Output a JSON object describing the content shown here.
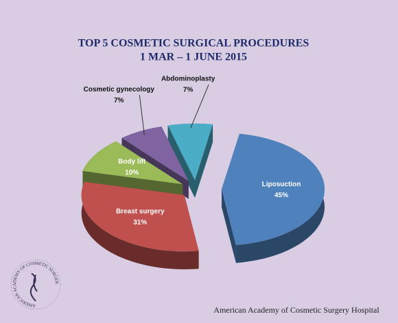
{
  "chart_data": {
    "type": "pie3d",
    "title": "TOP 5 COSMETIC SURGICAL PROCEDURES",
    "subtitle": "1 MAR – 1 JUNE 2015",
    "categories": [
      "Liposuction",
      "Breast surgery",
      "Body lift",
      "Cosmetic gynecology",
      "Abdominoplasty"
    ],
    "values": [
      45,
      31,
      10,
      7,
      7
    ],
    "value_labels": [
      "45%",
      "31%",
      "10%",
      "7%",
      "7%"
    ],
    "colors": [
      "#4f81bd",
      "#c0504d",
      "#9bbb59",
      "#8064a2",
      "#4bacc6"
    ],
    "footer": "American Academy of Cosmetic Surgery Hospital",
    "logo_text": "AMERICAN ACADEMY OF COSMETIC SURGERY HOSPITAL"
  }
}
